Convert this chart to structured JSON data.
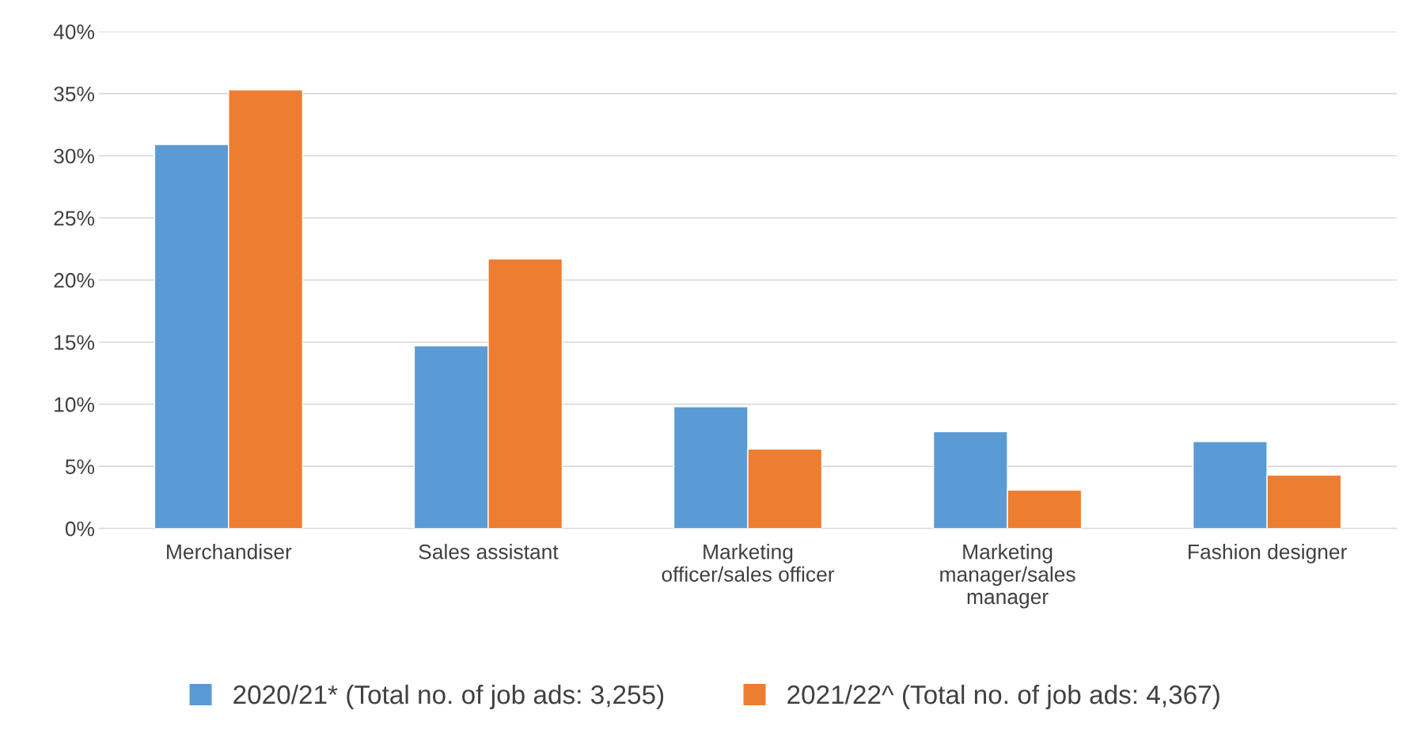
{
  "chart_data": {
    "type": "bar",
    "categories": [
      "Merchandiser",
      "Sales assistant",
      "Marketing\nofficer/sales officer",
      "Marketing\nmanager/sales\nmanager",
      "Fashion designer"
    ],
    "series": [
      {
        "name": "2020/21* (Total no. of job ads: 3,255)",
        "color": "#5b9bd5",
        "values": [
          30.9,
          14.7,
          9.8,
          7.8,
          7.0
        ]
      },
      {
        "name": "2021/22^ (Total no. of job ads: 4,367)",
        "color": "#ed7d31",
        "values": [
          35.3,
          21.7,
          6.4,
          3.1,
          4.3
        ]
      }
    ],
    "ylim": [
      0,
      40
    ],
    "yticks": [
      {
        "value": 0,
        "label": "0%"
      },
      {
        "value": 5,
        "label": "5%"
      },
      {
        "value": 10,
        "label": "10%"
      },
      {
        "value": 15,
        "label": "15%"
      },
      {
        "value": 20,
        "label": "20%"
      },
      {
        "value": 25,
        "label": "25%"
      },
      {
        "value": 30,
        "label": "30%"
      },
      {
        "value": 35,
        "label": "35%"
      },
      {
        "value": 40,
        "label": "40%"
      }
    ],
    "grid": "y",
    "legend": "bottom"
  }
}
